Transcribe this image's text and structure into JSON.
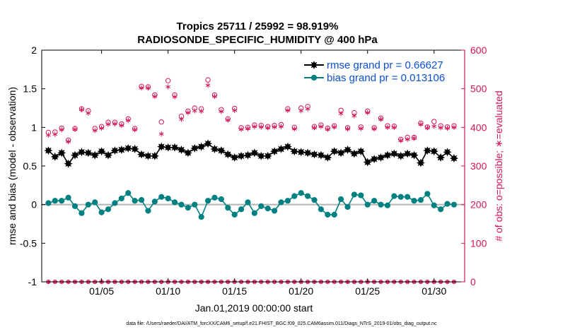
{
  "chart_data": {
    "type": "line",
    "title": "Tropics 25711 / 25992 = 98.919%",
    "subtitle": "RADIOSONDE_SPECIFIC_HUMIDITY @ 400 hPa",
    "xlabel": "Jan.01,2019 00:00:00 start",
    "ylabel": "rmse and bias (model - observation)",
    "ylabel_right": "# of obs: o=possible; ∗=evaluated",
    "xlim": [
      0.5,
      32.3
    ],
    "ylim": [
      -1,
      2
    ],
    "ylim_right": [
      0,
      600
    ],
    "x_ticks": [
      5,
      10,
      15,
      20,
      25,
      30
    ],
    "x_tick_labels": [
      "01/05",
      "01/10",
      "01/15",
      "01/20",
      "01/25",
      "01/30"
    ],
    "y_tick_labels": [
      "-1",
      "-0.5",
      "0",
      "0.5",
      "1",
      "1.5",
      "2"
    ],
    "y_ticks": [
      -1,
      -0.5,
      0,
      0.5,
      1,
      1.5,
      2
    ],
    "y_right_ticks": [
      0,
      100,
      200,
      300,
      400,
      500,
      600
    ],
    "y_right_tick_labels": [
      "0",
      "100",
      "200",
      "300",
      "400",
      "500",
      "600"
    ],
    "legend_location": "top-right",
    "footnote": "data file: /Users/raeder/DAI/ATM_forcXX/CAM6_setup/f.e21.FHIST_BGC.f09_025.CAM6assim.011/Diags_NTrS_2019-01/obs_diag_output.nc",
    "colors": {
      "rmse": "#000000",
      "bias": "#008080",
      "obs": "#d4145a",
      "zero_line": "#b4b4b4"
    },
    "series": [
      {
        "name": "rmse grand pr = 0.66627",
        "axis": "left",
        "color": "#000000",
        "marker": "star-filled",
        "x": [
          1,
          1.5,
          2,
          2.5,
          3,
          3.5,
          4,
          4.5,
          5,
          5.5,
          6,
          6.5,
          7,
          7.5,
          8,
          8.5,
          9,
          9.5,
          10,
          10.5,
          11,
          11.5,
          12,
          12.5,
          13,
          13.5,
          14,
          14.5,
          15,
          15.5,
          16,
          16.5,
          17,
          17.5,
          18,
          18.5,
          19,
          19.5,
          20,
          20.5,
          21,
          21.5,
          22,
          22.5,
          23,
          23.5,
          24,
          24.5,
          25,
          25.5,
          26,
          26.5,
          27,
          27.5,
          28,
          28.5,
          29,
          29.5,
          30,
          30.5,
          31,
          31.5
        ],
        "values": [
          0.7,
          0.62,
          0.67,
          0.53,
          0.64,
          0.68,
          0.67,
          0.64,
          0.69,
          0.64,
          0.7,
          0.71,
          0.73,
          0.72,
          0.65,
          0.63,
          0.63,
          0.75,
          0.74,
          0.74,
          0.71,
          0.67,
          0.73,
          0.75,
          0.79,
          0.72,
          0.7,
          0.65,
          0.61,
          0.63,
          0.64,
          0.67,
          0.63,
          0.63,
          0.69,
          0.72,
          0.75,
          0.69,
          0.68,
          0.67,
          0.65,
          0.64,
          0.61,
          0.69,
          0.67,
          0.71,
          0.66,
          0.69,
          0.55,
          0.59,
          0.61,
          0.64,
          0.66,
          0.63,
          0.66,
          0.64,
          0.54,
          0.7,
          0.69,
          0.61,
          0.68,
          0.6
        ]
      },
      {
        "name": "bias grand pr = 0.013106",
        "axis": "left",
        "color": "#008080",
        "marker": "circle-filled",
        "x": [
          1,
          1.5,
          2,
          2.5,
          3,
          3.5,
          4,
          4.5,
          5,
          5.5,
          6,
          6.5,
          7,
          7.5,
          8,
          8.5,
          9,
          9.5,
          10,
          10.5,
          11,
          11.5,
          12,
          12.5,
          13,
          13.5,
          14,
          14.5,
          15,
          15.5,
          16,
          16.5,
          17,
          17.5,
          18,
          18.5,
          19,
          19.5,
          20,
          20.5,
          21,
          21.5,
          22,
          22.5,
          23,
          23.5,
          24,
          24.5,
          25,
          25.5,
          26,
          26.5,
          27,
          27.5,
          28,
          28.5,
          29,
          29.5,
          30,
          30.5,
          31,
          31.5
        ],
        "values": [
          0.02,
          0.05,
          0.05,
          0.09,
          -0.02,
          -0.11,
          0.0,
          0.03,
          -0.1,
          -0.06,
          0.02,
          0.08,
          0.15,
          0.05,
          0.06,
          -0.08,
          0.04,
          0.1,
          0.08,
          0.03,
          0.0,
          -0.04,
          0.0,
          -0.16,
          0.05,
          0.09,
          0.07,
          -0.04,
          -0.13,
          -0.06,
          0.03,
          -0.11,
          -0.02,
          -0.05,
          -0.08,
          0.03,
          0.05,
          0.11,
          0.15,
          0.11,
          0.06,
          -0.06,
          -0.13,
          -0.13,
          0.07,
          -0.03,
          0.13,
          0.12,
          0.0,
          0.05,
          0.0,
          -0.01,
          0.11,
          0.1,
          0.1,
          0.05,
          0.06,
          0.14,
          -0.01,
          -0.06,
          0.01,
          0.0
        ]
      },
      {
        "name": "possible",
        "axis": "right",
        "color": "#d4145a",
        "marker": "circle-open",
        "x": [
          1,
          1.5,
          2,
          2.5,
          3,
          3.5,
          4,
          4.5,
          5,
          5.5,
          6,
          6.5,
          7,
          7.5,
          8,
          8.5,
          9,
          9.5,
          10,
          10.5,
          11,
          11.5,
          12,
          12.5,
          13,
          13.5,
          14,
          14.5,
          15,
          15.5,
          16,
          16.5,
          17,
          17.5,
          18,
          18.5,
          19,
          19.5,
          20,
          20.5,
          21,
          21.5,
          22,
          22.5,
          23,
          23.5,
          24,
          24.5,
          25,
          25.5,
          26,
          26.5,
          27,
          27.5,
          28,
          28.5,
          29,
          29.5,
          30,
          30.5,
          31,
          31.5
        ],
        "values": [
          387,
          388,
          398,
          367,
          397,
          448,
          443,
          397,
          402,
          413,
          413,
          409,
          422,
          397,
          506,
          505,
          484,
          414,
          521,
          484,
          429,
          442,
          450,
          448,
          523,
          484,
          446,
          422,
          449,
          399,
          400,
          406,
          405,
          402,
          405,
          407,
          448,
          400,
          450,
          454,
          402,
          406,
          398,
          404,
          444,
          399,
          438,
          401,
          442,
          399,
          424,
          404,
          403,
          369,
          374,
          374,
          411,
          401,
          415,
          404,
          401,
          404
        ],
        "zero_row": true
      },
      {
        "name": "evaluated",
        "axis": "right",
        "color": "#d4145a",
        "marker": "asterisk",
        "x": [
          1,
          1.5,
          2,
          2.5,
          3,
          3.5,
          4,
          4.5,
          5,
          5.5,
          6,
          6.5,
          7,
          7.5,
          8,
          8.5,
          9,
          9.5,
          10,
          10.5,
          11,
          11.5,
          12,
          12.5,
          13,
          13.5,
          14,
          14.5,
          15,
          15.5,
          16,
          16.5,
          17,
          17.5,
          18,
          18.5,
          19,
          19.5,
          20,
          20.5,
          21,
          21.5,
          22,
          22.5,
          23,
          23.5,
          24,
          24.5,
          25,
          25.5,
          26,
          26.5,
          27,
          27.5,
          28,
          28.5,
          29,
          29.5,
          30,
          30.5,
          31,
          31.5
        ],
        "values": [
          380,
          382,
          394,
          363,
          395,
          446,
          437,
          392,
          398,
          408,
          409,
          405,
          418,
          394,
          502,
          502,
          480,
          383,
          505,
          479,
          421,
          438,
          443,
          442,
          509,
          480,
          441,
          419,
          444,
          395,
          397,
          402,
          401,
          399,
          401,
          402,
          444,
          396,
          443,
          448,
          399,
          402,
          395,
          401,
          436,
          396,
          430,
          397,
          438,
          396,
          421,
          400,
          400,
          366,
          369,
          372,
          408,
          399,
          403,
          399,
          398,
          400
        ],
        "zero_row": true
      }
    ]
  }
}
